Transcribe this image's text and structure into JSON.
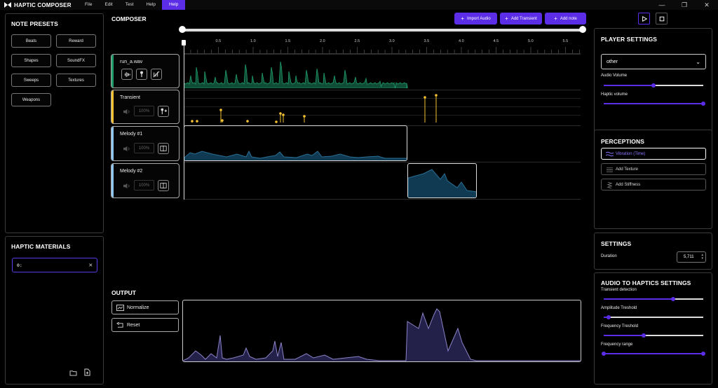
{
  "app": {
    "title": "HAPTIC COMPOSER"
  },
  "menu": [
    "File",
    "Edit",
    "Test",
    "Help",
    "Help"
  ],
  "note_presets": {
    "title": "NOTE PRESETS",
    "buttons": [
      "Beats",
      "Reward",
      "Shapes",
      "SoundFX",
      "Sweeps",
      "Textures",
      "Weapons"
    ]
  },
  "haptic_materials": {
    "title": "HAPTIC MATERIALS",
    "value": "0:"
  },
  "composer": {
    "title": "COMPOSER",
    "buttons": {
      "import_audio": "Import Audio",
      "add_transient": "Add Transient",
      "add_note": "Add note"
    },
    "ruler": [
      "0.5",
      "1.0",
      "1.5",
      "2.0",
      "2.5",
      "3.0",
      "3.5",
      "4.0",
      "4.5",
      "5.0",
      "5.5"
    ],
    "tracks": [
      {
        "name": "run_a.wav",
        "stripe": "#1f9d6b"
      },
      {
        "name": "Transient",
        "stripe": "#f2c230",
        "volume": "100%"
      },
      {
        "name": "Melody #1",
        "stripe": "#8fc6f0",
        "volume": "100%"
      },
      {
        "name": "Melody #2",
        "stripe": "#8fc6f0",
        "volume": "100%"
      }
    ]
  },
  "output": {
    "title": "OUTPUT",
    "normalize": "Normalize",
    "reset": "Reset"
  },
  "player_settings": {
    "title": "PLAYER SETTINGS",
    "dropdown_value": "other",
    "audio_volume_label": "Audio Volume",
    "audio_volume": 0.5,
    "haptic_volume_label": "Haptic volume",
    "haptic_volume": 1.0
  },
  "perceptions": {
    "title": "PERCEPTIONS",
    "items": [
      "Vibration (Time)",
      "Add Texture",
      "Add Stiffness"
    ]
  },
  "settings": {
    "title": "SETTINGS",
    "duration_label": "Duration",
    "duration_value": "5,711"
  },
  "audio_to_haptics": {
    "title": "AUDIO TO HAPTICS SETTINGS",
    "transient_label": "Transient detection",
    "transient": 0.7,
    "amplitude_label": "Amplitude Treshold",
    "amplitude": 0.05,
    "frequency_label": "Frequency Treshold",
    "frequency": 0.4,
    "range_label": "Frequency range",
    "range": [
      0.0,
      1.0
    ]
  },
  "colors": {
    "accent": "#5b2de6",
    "audio_wave": "#1f9d6b",
    "transient": "#f2c230",
    "melody": "#2a6f96",
    "output": "#8c84c8"
  }
}
